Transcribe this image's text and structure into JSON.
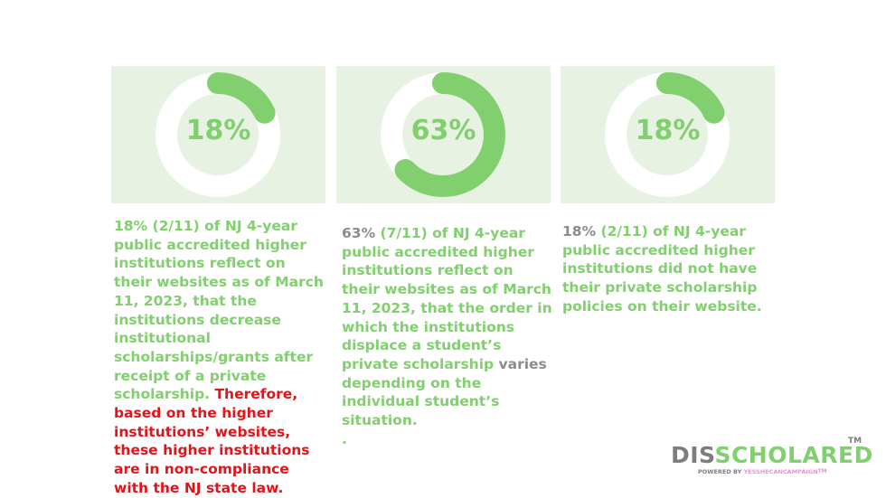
{
  "cards": [
    {
      "label": "18%",
      "value": 18
    },
    {
      "label": "63%",
      "value": 63
    },
    {
      "label": "18%",
      "value": 18
    }
  ],
  "descriptions": {
    "d1_main": "18% (2/11) of NJ 4-year public accredited higher institutions reflect on their websites as of March 11, 2023, that the institutions decrease institutional scholarships/grants after receipt of a private scholarship. ",
    "d1_red": "Therefore, based on the higher institutions’ websites, these higher institutions are in non-compliance with the NJ state law.",
    "d2_pct": "63%",
    "d2_main": " (7/11) of NJ 4-year public accredited higher institutions reflect on their websites as of March 11, 2023, that the order in which the institutions displace a student’s private scholarship ",
    "d2_varies": "varies",
    "d2_end": " depending on the individual student’s situation.",
    "d2_dot": ".",
    "d3_pct": "18%",
    "d3_main": " (2/11) of NJ 4-year public accredited higher institutions did not have their private scholarship policies on their website."
  },
  "logo": {
    "dis": "DIS",
    "scholared": "SCHOLARED",
    "tm": "TM",
    "powered_by": "POWERED BY ",
    "brand": "YESSHECANCAMPAIGN",
    "brand_tm": "TM"
  },
  "colors": {
    "card_bg": "#e7f2e2",
    "ring_track": "#ffffff",
    "ring_fill": "#82cf6f",
    "text_green": "#82cf6f",
    "text_grey": "#8c8c8c",
    "text_red": "#e2141b"
  }
}
